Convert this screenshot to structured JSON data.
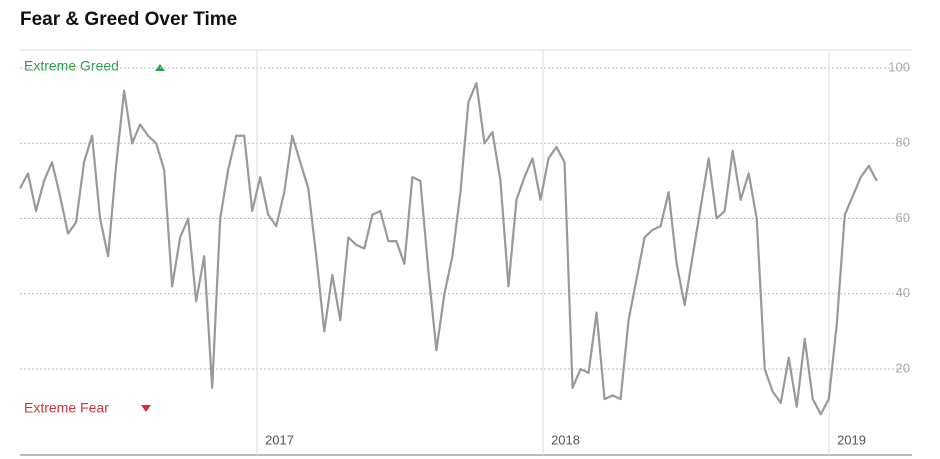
{
  "chart_data": {
    "type": "line",
    "title": "Fear & Greed Over Time",
    "greed_label": "Extreme Greed",
    "fear_label": "Extreme Fear",
    "xlim": [
      2016.171,
      2019.29
    ],
    "ylim": [
      4.6,
      104.8
    ],
    "xticks": [
      2017,
      2018,
      2019
    ],
    "yticks": [
      20,
      40,
      60,
      80,
      100
    ],
    "grid": true,
    "x": [
      2016.171,
      2016.199,
      2016.227,
      2016.255,
      2016.283,
      2016.311,
      2016.339,
      2016.367,
      2016.395,
      2016.423,
      2016.451,
      2016.479,
      2016.507,
      2016.535,
      2016.563,
      2016.591,
      2016.619,
      2016.647,
      2016.675,
      2016.703,
      2016.731,
      2016.759,
      2016.787,
      2016.815,
      2016.843,
      2016.871,
      2016.899,
      2016.927,
      2016.955,
      2016.983,
      2017.011,
      2017.039,
      2017.067,
      2017.095,
      2017.123,
      2017.151,
      2017.179,
      2017.207,
      2017.235,
      2017.263,
      2017.291,
      2017.319,
      2017.347,
      2017.375,
      2017.403,
      2017.431,
      2017.459,
      2017.487,
      2017.515,
      2017.543,
      2017.571,
      2017.599,
      2017.627,
      2017.655,
      2017.683,
      2017.711,
      2017.739,
      2017.767,
      2017.795,
      2017.823,
      2017.851,
      2017.879,
      2017.907,
      2017.935,
      2017.963,
      2017.991,
      2018.019,
      2018.047,
      2018.075,
      2018.103,
      2018.131,
      2018.159,
      2018.187,
      2018.215,
      2018.243,
      2018.271,
      2018.299,
      2018.327,
      2018.355,
      2018.383,
      2018.411,
      2018.439,
      2018.467,
      2018.495,
      2018.523,
      2018.551,
      2018.579,
      2018.607,
      2018.635,
      2018.663,
      2018.691,
      2018.719,
      2018.747,
      2018.775,
      2018.803,
      2018.831,
      2018.859,
      2018.887,
      2018.915,
      2018.943,
      2018.971,
      2018.999,
      2019.027,
      2019.055,
      2019.083,
      2019.111,
      2019.139,
      2019.167
    ],
    "series": [
      {
        "color": "#999999",
        "values": [
          68,
          72,
          62,
          70,
          75,
          66,
          56,
          59,
          75,
          82,
          60,
          50,
          74,
          94,
          80,
          85,
          82,
          80,
          73,
          42,
          55,
          60,
          38,
          50,
          15,
          60,
          73,
          82,
          82,
          62,
          71,
          61,
          58,
          67,
          82,
          75,
          68,
          50,
          30,
          45,
          33,
          55,
          53,
          52,
          61,
          62,
          54,
          54,
          48,
          71,
          70,
          46,
          25,
          40,
          50,
          67,
          91,
          96,
          80,
          83,
          70,
          42,
          65,
          71,
          76,
          65,
          76,
          79,
          75,
          15,
          20,
          19,
          35,
          12,
          13,
          12,
          33,
          44,
          55,
          57,
          58,
          67,
          48,
          37,
          50,
          63,
          76,
          60,
          62,
          78,
          65,
          72,
          60,
          20,
          14,
          11,
          23,
          10,
          28,
          12,
          8,
          12,
          32,
          61,
          66,
          71,
          74,
          70
        ]
      }
    ]
  }
}
